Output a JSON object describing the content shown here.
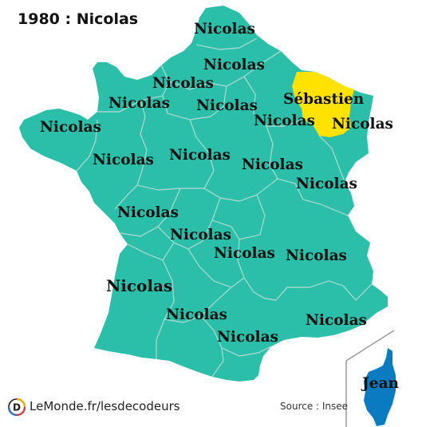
{
  "title": "1980 : Nicolas",
  "colors": {
    "regions": "#2bbfa9",
    "highlight": "#ffe200",
    "corsica": "#0a7bc1",
    "borders": "#9ed8cc"
  },
  "regions": [
    {
      "id": "nord",
      "name": "Nicolas"
    },
    {
      "id": "picardie",
      "name": "Nicolas"
    },
    {
      "id": "haute-normandie",
      "name": "Nicolas"
    },
    {
      "id": "basse-normandie",
      "name": "Nicolas"
    },
    {
      "id": "ile-de-france",
      "name": "Nicolas"
    },
    {
      "id": "champagne-ardenne",
      "name": "Nicolas"
    },
    {
      "id": "lorraine",
      "name": "Sébastien"
    },
    {
      "id": "alsace",
      "name": "Nicolas"
    },
    {
      "id": "bretagne",
      "name": "Nicolas"
    },
    {
      "id": "pays-de-la-loire",
      "name": "Nicolas"
    },
    {
      "id": "centre",
      "name": "Nicolas"
    },
    {
      "id": "bourgogne",
      "name": "Nicolas"
    },
    {
      "id": "franche-comte",
      "name": "Nicolas"
    },
    {
      "id": "poitou-charentes",
      "name": "Nicolas"
    },
    {
      "id": "limousin",
      "name": "Nicolas"
    },
    {
      "id": "auvergne",
      "name": "Nicolas"
    },
    {
      "id": "rhone-alpes",
      "name": "Nicolas"
    },
    {
      "id": "aquitaine",
      "name": "Nicolas"
    },
    {
      "id": "midi-pyrenees",
      "name": "Nicolas"
    },
    {
      "id": "languedoc-roussillon",
      "name": "Nicolas"
    },
    {
      "id": "paca",
      "name": "Nicolas"
    },
    {
      "id": "corse",
      "name": "Jean"
    }
  ],
  "footer": {
    "brand": "LeMonde.fr/lesdecodeurs",
    "logo_letter": "D",
    "source": "Source : Insee"
  }
}
